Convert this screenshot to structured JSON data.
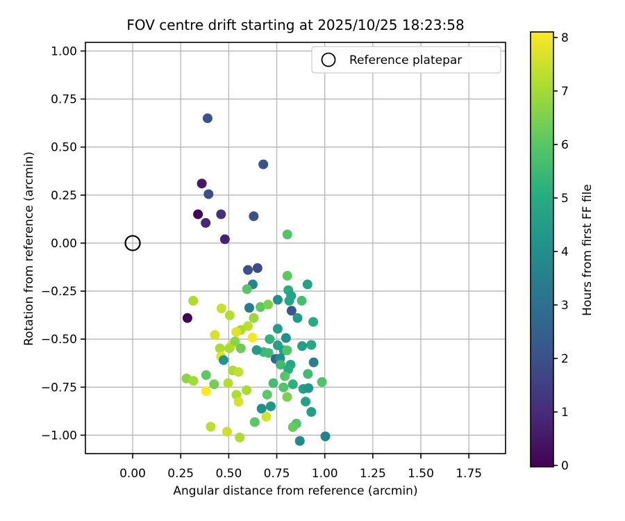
{
  "chart_data": {
    "type": "scatter",
    "title": "FOV centre drift starting at 2025/10/25 18:23:58",
    "xlabel": "Angular distance from reference (arcmin)",
    "ylabel": "Rotation from reference (arcmin)",
    "xlim": [
      -0.246,
      1.941
    ],
    "ylim": [
      -1.096,
      1.045
    ],
    "xticks": [
      0.0,
      0.25,
      0.5,
      0.75,
      1.0,
      1.25,
      1.5,
      1.75
    ],
    "yticks": [
      -1.0,
      -0.75,
      -0.5,
      -0.25,
      0.0,
      0.25,
      0.5,
      0.75,
      1.0
    ],
    "grid": true,
    "legend": {
      "label": "Reference platepar",
      "position": "upper right",
      "marker": "open-circle"
    },
    "colorbar": {
      "label": "Hours from first FF file",
      "min": 0,
      "max": 8,
      "ticks": [
        0,
        1,
        2,
        3,
        4,
        5,
        6,
        7,
        8
      ],
      "colormap": "viridis"
    },
    "reference_point": {
      "x": 0.0,
      "y": 0.0
    },
    "point_format": [
      "x",
      "y",
      "hours"
    ],
    "points": [
      [
        0.39,
        0.65,
        2.0
      ],
      [
        0.68,
        0.41,
        2.1
      ],
      [
        0.36,
        0.31,
        0.5
      ],
      [
        0.395,
        0.255,
        1.9
      ],
      [
        0.34,
        0.15,
        0.1
      ],
      [
        0.46,
        0.15,
        1.1
      ],
      [
        0.63,
        0.14,
        2.0
      ],
      [
        0.38,
        0.105,
        0.9
      ],
      [
        0.805,
        0.045,
        5.8
      ],
      [
        0.48,
        0.02,
        0.8
      ],
      [
        0.6,
        -0.14,
        2.0
      ],
      [
        0.65,
        -0.13,
        1.8
      ],
      [
        0.805,
        -0.17,
        6.0
      ],
      [
        0.625,
        -0.215,
        3.6
      ],
      [
        0.595,
        -0.24,
        5.9
      ],
      [
        0.91,
        -0.215,
        4.6
      ],
      [
        0.81,
        -0.245,
        5.0
      ],
      [
        0.825,
        -0.275,
        4.6
      ],
      [
        0.315,
        -0.3,
        7.0
      ],
      [
        0.755,
        -0.295,
        4.0
      ],
      [
        0.815,
        -0.3,
        4.7
      ],
      [
        0.88,
        -0.3,
        5.6
      ],
      [
        0.285,
        -0.39,
        0.0
      ],
      [
        0.462,
        -0.34,
        7.4
      ],
      [
        0.607,
        -0.337,
        3.3
      ],
      [
        0.665,
        -0.333,
        6.0
      ],
      [
        0.705,
        -0.32,
        6.4
      ],
      [
        0.827,
        -0.352,
        2.2
      ],
      [
        0.858,
        -0.39,
        4.3
      ],
      [
        0.94,
        -0.41,
        5.0
      ],
      [
        0.505,
        -0.376,
        7.1
      ],
      [
        0.63,
        -0.39,
        6.8
      ],
      [
        0.6,
        -0.432,
        7.2
      ],
      [
        0.563,
        -0.452,
        7.0
      ],
      [
        0.623,
        -0.492,
        7.9
      ],
      [
        0.428,
        -0.478,
        7.5
      ],
      [
        0.539,
        -0.463,
        7.6
      ],
      [
        0.755,
        -0.446,
        4.5
      ],
      [
        0.798,
        -0.494,
        4.0
      ],
      [
        0.515,
        -0.53,
        7.7
      ],
      [
        0.454,
        -0.548,
        7.0
      ],
      [
        0.533,
        -0.512,
        6.6
      ],
      [
        0.503,
        -0.548,
        7.0
      ],
      [
        0.563,
        -0.548,
        6.2
      ],
      [
        0.681,
        -0.567,
        5.4
      ],
      [
        0.713,
        -0.5,
        5.2
      ],
      [
        0.707,
        -0.572,
        5.5
      ],
      [
        0.744,
        -0.603,
        2.6
      ],
      [
        0.755,
        -0.532,
        4.6
      ],
      [
        0.786,
        -0.558,
        4.5
      ],
      [
        0.804,
        -0.558,
        5.8
      ],
      [
        0.46,
        -0.59,
        7.6
      ],
      [
        0.473,
        -0.609,
        4.2
      ],
      [
        0.768,
        -0.6,
        4.0
      ],
      [
        0.77,
        -0.633,
        5.5
      ],
      [
        0.822,
        -0.633,
        4.8
      ],
      [
        0.81,
        -0.657,
        5.0
      ],
      [
        0.521,
        -0.663,
        7.0
      ],
      [
        0.551,
        -0.671,
        7.3
      ],
      [
        0.382,
        -0.687,
        6.0
      ],
      [
        0.28,
        -0.705,
        6.6
      ],
      [
        0.316,
        -0.717,
        6.9
      ],
      [
        0.424,
        -0.735,
        6.3
      ],
      [
        0.382,
        -0.771,
        8.0
      ],
      [
        0.497,
        -0.729,
        7.1
      ],
      [
        0.732,
        -0.729,
        5.6
      ],
      [
        0.785,
        -0.751,
        5.8
      ],
      [
        0.593,
        -0.766,
        7.0
      ],
      [
        0.54,
        -0.79,
        7.0
      ],
      [
        0.551,
        -0.826,
        7.5
      ],
      [
        0.7,
        -0.789,
        6.0
      ],
      [
        0.912,
        -0.681,
        5.5
      ],
      [
        0.792,
        -0.693,
        5.9
      ],
      [
        0.834,
        -0.735,
        5.1
      ],
      [
        0.888,
        -0.759,
        4.5
      ],
      [
        0.915,
        -0.755,
        4.2
      ],
      [
        0.985,
        -0.723,
        5.8
      ],
      [
        0.942,
        -0.621,
        3.5
      ],
      [
        0.804,
        -0.801,
        6.4
      ],
      [
        0.9,
        -0.825,
        4.6
      ],
      [
        0.93,
        -0.879,
        4.5
      ],
      [
        0.671,
        -0.862,
        4.0
      ],
      [
        0.719,
        -0.85,
        4.2
      ],
      [
        0.695,
        -0.904,
        7.5
      ],
      [
        0.635,
        -0.932,
        6.0
      ],
      [
        0.406,
        -0.956,
        7.2
      ],
      [
        0.491,
        -0.982,
        7.4
      ],
      [
        0.557,
        -1.012,
        7.0
      ],
      [
        0.852,
        -0.94,
        5.8
      ],
      [
        0.834,
        -0.958,
        6.1
      ],
      [
        1.003,
        -1.006,
        3.5
      ],
      [
        0.87,
        -1.03,
        3.8
      ],
      [
        0.882,
        -0.536,
        4.5
      ],
      [
        0.93,
        -0.53,
        4.8
      ],
      [
        0.645,
        -0.557,
        4.4
      ]
    ],
    "colors": {
      "grid": "#b5b5b5",
      "spine": "#000000",
      "legend_border": "#cccccc",
      "marker_edge": "#000000"
    }
  }
}
